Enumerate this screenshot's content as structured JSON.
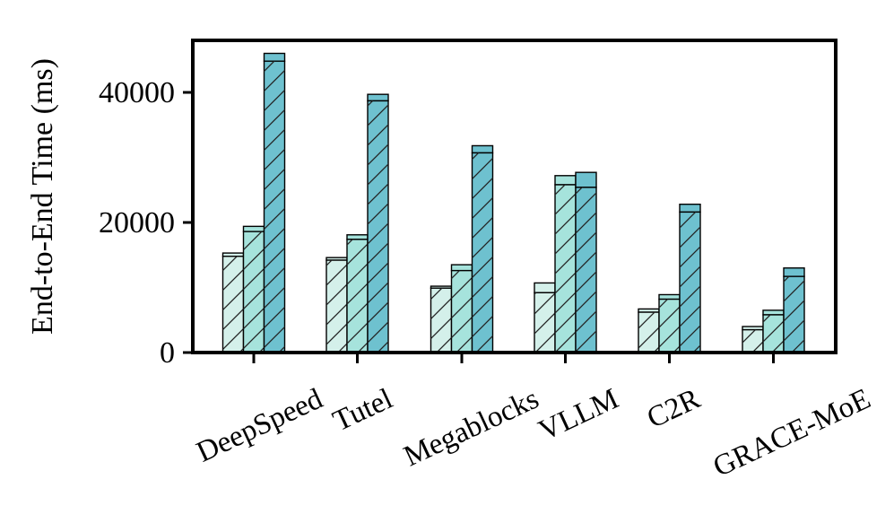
{
  "chart_data": {
    "type": "bar",
    "stacked_segments": true,
    "title": "",
    "xlabel": "",
    "ylabel": "End-to-End Time (ms)",
    "ylim": [
      0,
      48000
    ],
    "yticks": [
      0,
      20000,
      40000
    ],
    "ytick_labels": [
      "0",
      "20000",
      "40000"
    ],
    "grid": false,
    "legend": "none",
    "categories": [
      "DeepSpeed",
      "Tutel",
      "Megablocks",
      "VLLM",
      "C2R",
      "GRACE-MoE"
    ],
    "bars_per_category": 3,
    "colors": [
      "#d4f0ea",
      "#a6e3dc",
      "#6ec1cf"
    ],
    "bars": [
      [
        {
          "lower": 14800,
          "total": 15300
        },
        {
          "lower": 18600,
          "total": 19400
        },
        {
          "lower": 44800,
          "total": 46000
        }
      ],
      [
        {
          "lower": 14200,
          "total": 14600
        },
        {
          "lower": 17400,
          "total": 18100
        },
        {
          "lower": 38700,
          "total": 39700
        }
      ],
      [
        {
          "lower": 9900,
          "total": 10200
        },
        {
          "lower": 12600,
          "total": 13500
        },
        {
          "lower": 30700,
          "total": 31800
        }
      ],
      [
        {
          "lower": 9200,
          "total": 10700
        },
        {
          "lower": 25800,
          "total": 27200
        },
        {
          "lower": 25400,
          "total": 27700
        }
      ],
      [
        {
          "lower": 6200,
          "total": 6700
        },
        {
          "lower": 8200,
          "total": 8900
        },
        {
          "lower": 21600,
          "total": 22800
        }
      ],
      [
        {
          "lower": 3500,
          "total": 4000
        },
        {
          "lower": 5800,
          "total": 6500
        },
        {
          "lower": 11700,
          "total": 13000
        }
      ]
    ]
  }
}
